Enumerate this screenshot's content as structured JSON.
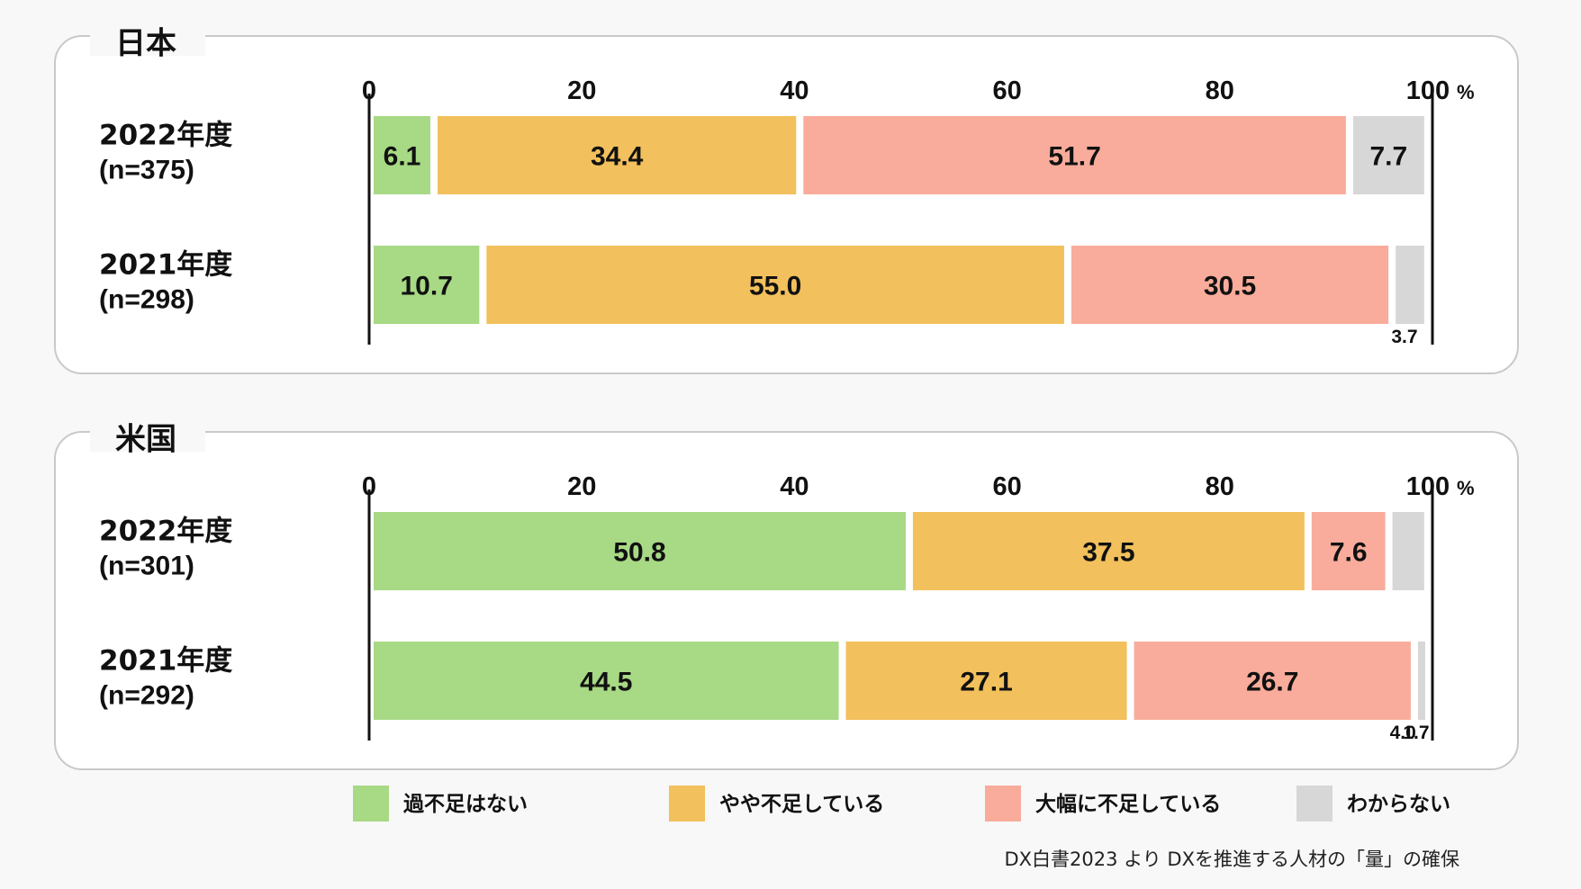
{
  "chart_data": [
    {
      "type": "bar",
      "orientation": "horizontal",
      "stacked": true,
      "title": "日本",
      "categories": [
        "2022年度",
        "2021年度"
      ],
      "sample_sizes": [
        "(n=375)",
        "(n=298)"
      ],
      "series": [
        {
          "name": "過不足はない",
          "values": [
            6.1,
            10.7
          ]
        },
        {
          "name": "やや不足している",
          "values": [
            34.4,
            55.0
          ]
        },
        {
          "name": "大幅に不足している",
          "values": [
            51.7,
            30.5
          ]
        },
        {
          "name": "わからない",
          "values": [
            7.7,
            3.7
          ]
        }
      ],
      "xlim": [
        0,
        100
      ],
      "ticks": [
        "0",
        "20",
        "40",
        "60",
        "80",
        "100"
      ],
      "tick_unit": "%",
      "legend_position": "bottom",
      "grid": false
    },
    {
      "type": "bar",
      "orientation": "horizontal",
      "stacked": true,
      "title": "米国",
      "categories": [
        "2022年度",
        "2021年度"
      ],
      "sample_sizes": [
        "(n=301)",
        "(n=292)"
      ],
      "series": [
        {
          "name": "過不足はない",
          "values": [
            50.8,
            44.5
          ]
        },
        {
          "name": "やや不足している",
          "values": [
            37.5,
            27.1
          ]
        },
        {
          "name": "大幅に不足している",
          "values": [
            7.6,
            26.7
          ]
        },
        {
          "name": "わからない",
          "values": [
            4.0,
            1.7
          ]
        }
      ],
      "xlim": [
        0,
        100
      ],
      "ticks": [
        "0",
        "20",
        "40",
        "60",
        "80",
        "100"
      ],
      "tick_unit": "%",
      "legend_position": "bottom",
      "grid": false
    }
  ],
  "colors": [
    "#a8d985",
    "#f2c05c",
    "#f9ac9b",
    "#d7d7d7"
  ],
  "legend": [
    "過不足はない",
    "やや不足している",
    "大幅に不足している",
    "わからない"
  ],
  "source": "DX白書2023 より DXを推進する人材の「量」の確保"
}
